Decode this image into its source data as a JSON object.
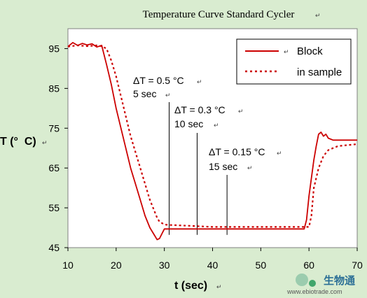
{
  "chart_data": {
    "type": "line",
    "title": "Temperature Curve Standard Cycler",
    "xlabel": "t (sec)",
    "ylabel": "T (°  C)",
    "xlim": [
      10,
      70
    ],
    "ylim": [
      45,
      100
    ],
    "xticks": [
      10,
      20,
      30,
      40,
      50,
      60,
      70
    ],
    "yticks": [
      45,
      55,
      65,
      75,
      85,
      95
    ],
    "grid": false,
    "legend_position": "top-right",
    "series": [
      {
        "name": "Block",
        "color": "#cc0000",
        "style": "solid",
        "x": [
          10,
          11,
          12,
          13,
          14,
          15,
          16,
          17,
          18,
          19,
          20,
          21,
          22,
          23,
          24,
          25,
          26,
          27,
          28,
          28.5,
          29,
          29.5,
          30,
          31,
          35,
          40,
          45,
          50,
          55,
          58,
          59,
          59.5,
          60,
          61,
          61.5,
          62,
          62.5,
          63,
          63.5,
          64,
          65,
          66,
          70
        ],
        "y": [
          95.5,
          96.5,
          95.8,
          96.3,
          95.9,
          96.2,
          95.4,
          95.8,
          91,
          86,
          80,
          75,
          70,
          65,
          61,
          57,
          53,
          50,
          48,
          47,
          47.3,
          48.5,
          49.7,
          49.7,
          49.7,
          49.7,
          49.7,
          49.7,
          49.7,
          49.7,
          49.7,
          52,
          58,
          67,
          70.5,
          73.5,
          74,
          73,
          73.5,
          72.5,
          72,
          72,
          72
        ]
      },
      {
        "name": "in sample",
        "color": "#cc0000",
        "style": "dotted",
        "x": [
          10,
          12,
          14,
          16,
          17,
          18,
          19,
          20,
          21,
          22,
          23,
          24,
          25,
          26,
          27,
          28,
          28.5,
          29,
          30,
          31,
          35,
          40,
          45,
          50,
          55,
          58,
          59,
          60,
          60.5,
          61,
          62,
          63,
          64,
          65,
          66,
          70
        ],
        "y": [
          95.5,
          95.8,
          95.6,
          95.8,
          95.6,
          95,
          92,
          88,
          83,
          78,
          73,
          69,
          65,
          61,
          57,
          54,
          52.5,
          51.5,
          50.8,
          50.7,
          50.5,
          50.2,
          50.2,
          50.2,
          50.2,
          50.2,
          50.2,
          50.2,
          53,
          60,
          65,
          68,
          69.5,
          70,
          70.5,
          71
        ]
      }
    ],
    "annotations": [
      {
        "line1": "ΔT = 0.5 °C",
        "line2": "5 sec",
        "x": 31
      },
      {
        "line1": "ΔT = 0.3 °C",
        "line2": "10 sec",
        "x": 36.8
      },
      {
        "line1": "ΔT = 0.15 °C",
        "line2": "15 sec",
        "x": 43
      }
    ]
  },
  "watermark": {
    "brand": "生物通",
    "site": "www.ebiotrade.com"
  }
}
